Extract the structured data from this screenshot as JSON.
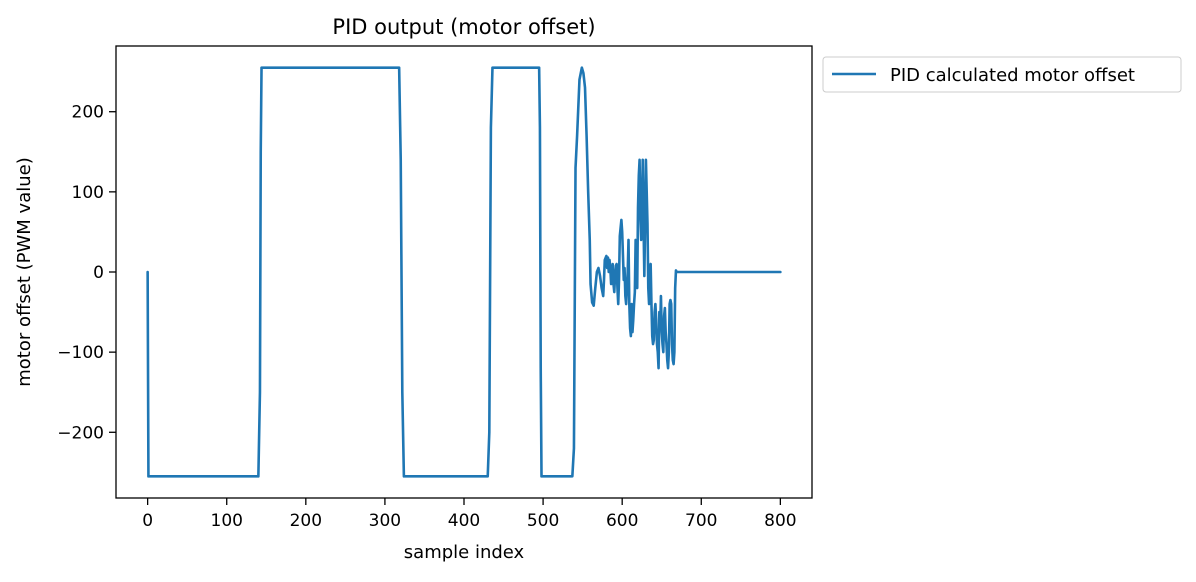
{
  "chart_data": {
    "type": "line",
    "title": "PID output (motor offset)",
    "xlabel": "sample index",
    "ylabel": "motor offset (PWM value)",
    "xlim": [
      -40,
      840
    ],
    "ylim": [
      -282,
      282
    ],
    "xticks": [
      0,
      100,
      200,
      300,
      400,
      500,
      600,
      700,
      800
    ],
    "yticks": [
      -200,
      -100,
      0,
      100,
      200
    ],
    "xtick_labels": [
      "0",
      "100",
      "200",
      "300",
      "400",
      "500",
      "600",
      "700",
      "800"
    ],
    "ytick_labels": [
      "−200",
      "−100",
      "0",
      "100",
      "200"
    ],
    "grid": false,
    "legend": {
      "placement": "outside-upper-right",
      "entries": [
        "PID calculated motor offset"
      ]
    },
    "series": [
      {
        "name": "PID calculated motor offset",
        "color": "#1f77b4",
        "x": [
          0,
          1,
          140,
          142,
          143,
          144,
          318,
          320,
          322,
          324,
          430,
          432,
          434,
          436,
          495,
          496,
          497,
          498,
          537,
          539,
          541,
          543,
          546,
          549,
          551,
          553,
          555,
          557,
          559,
          560,
          562,
          564,
          566,
          568,
          570,
          572,
          574,
          576,
          577,
          578,
          580,
          581,
          582,
          583,
          584,
          585,
          586,
          587,
          588,
          589,
          590,
          591,
          592,
          593,
          594,
          595,
          596,
          597,
          598,
          599,
          600,
          601,
          602,
          603,
          604,
          605,
          606,
          607,
          608,
          609,
          610,
          611,
          612,
          613,
          614,
          615,
          616,
          617,
          618,
          619,
          620,
          621,
          622,
          623,
          624,
          625,
          626,
          627,
          628,
          629,
          630,
          631,
          632,
          633,
          634,
          635,
          636,
          637,
          638,
          639,
          640,
          641,
          642,
          643,
          644,
          645,
          646,
          647,
          648,
          649,
          650,
          651,
          652,
          653,
          654,
          655,
          656,
          657,
          658,
          659,
          660,
          661,
          662,
          663,
          664,
          665,
          666,
          667,
          668,
          669,
          670,
          671,
          672,
          673,
          674,
          675,
          676,
          677,
          800
        ],
        "y": [
          0,
          -255,
          -255,
          -150,
          150,
          255,
          255,
          140,
          -150,
          -255,
          -255,
          -200,
          180,
          255,
          255,
          180,
          -120,
          -255,
          -255,
          -220,
          130,
          170,
          240,
          255,
          248,
          230,
          170,
          100,
          40,
          -15,
          -38,
          -42,
          -20,
          0,
          5,
          -5,
          -20,
          -30,
          -10,
          15,
          20,
          5,
          18,
          0,
          15,
          5,
          -15,
          -10,
          10,
          -15,
          -25,
          -5,
          8,
          10,
          -20,
          -40,
          -10,
          45,
          55,
          65,
          50,
          20,
          -10,
          5,
          -30,
          -40,
          -20,
          0,
          40,
          -40,
          -70,
          -80,
          -40,
          -75,
          -60,
          -40,
          -25,
          40,
          15,
          -20,
          80,
          120,
          140,
          70,
          40,
          80,
          140,
          60,
          -5,
          60,
          140,
          100,
          60,
          -20,
          -40,
          0,
          10,
          -40,
          -80,
          -90,
          -85,
          -50,
          -40,
          -60,
          -90,
          -100,
          -120,
          -50,
          -70,
          -30,
          -75,
          -90,
          -100,
          -55,
          -45,
          -75,
          -90,
          -110,
          -120,
          -100,
          -40,
          -35,
          -40,
          -90,
          -110,
          -115,
          -100,
          -20,
          2,
          0,
          0,
          0,
          0,
          0,
          0,
          0,
          0,
          0,
          0
        ]
      }
    ]
  }
}
